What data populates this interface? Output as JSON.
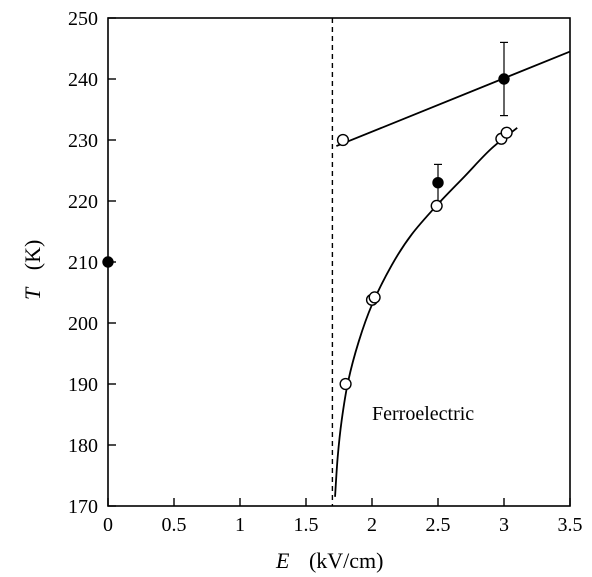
{
  "chart_data": {
    "type": "scatter",
    "title": "",
    "xlabel": {
      "symbol": "E",
      "unit": "(kV/cm)"
    },
    "ylabel": {
      "symbol": "T",
      "unit": "(K)"
    },
    "xlim": [
      0,
      3.5
    ],
    "ylim": [
      170,
      250
    ],
    "x_ticks": [
      "0",
      "0.5",
      "1",
      "1.5",
      "2",
      "2.5",
      "3",
      "3.5"
    ],
    "y_ticks": [
      "170",
      "180",
      "190",
      "200",
      "210",
      "220",
      "230",
      "240",
      "250"
    ],
    "x_tick_values": [
      0,
      0.5,
      1,
      1.5,
      2,
      2.5,
      3,
      3.5
    ],
    "y_tick_values": [
      170,
      180,
      190,
      200,
      210,
      220,
      230,
      240,
      250
    ],
    "grid": false,
    "annotation": "Ferroelectric",
    "vertical_dashed_line_x": 1.7,
    "series": [
      {
        "marker": "filled-circle",
        "points": [
          {
            "x": 0,
            "y": 210
          },
          {
            "x": 2.5,
            "y": 223,
            "yerr": 3
          },
          {
            "x": 3.0,
            "y": 240,
            "yerr": 6
          }
        ]
      },
      {
        "marker": "open-circle",
        "points": [
          {
            "x": 1.78,
            "y": 230
          },
          {
            "x": 1.8,
            "y": 190
          },
          {
            "x": 2.0,
            "y": 203.8
          },
          {
            "x": 2.02,
            "y": 204.2
          },
          {
            "x": 2.49,
            "y": 219.2
          },
          {
            "x": 2.98,
            "y": 230.2
          },
          {
            "x": 3.02,
            "y": 231.2
          }
        ]
      }
    ],
    "fit_lines": [
      {
        "shape": "straight",
        "points": [
          {
            "x": 1.73,
            "y": 229
          },
          {
            "x": 3.5,
            "y": 244.5
          }
        ]
      },
      {
        "shape": "curve",
        "points": [
          {
            "x": 1.72,
            "y": 171.5
          },
          {
            "x": 1.74,
            "y": 178
          },
          {
            "x": 1.77,
            "y": 184
          },
          {
            "x": 1.82,
            "y": 190.5
          },
          {
            "x": 1.9,
            "y": 197
          },
          {
            "x": 2.0,
            "y": 203
          },
          {
            "x": 2.15,
            "y": 209.5
          },
          {
            "x": 2.3,
            "y": 214.5
          },
          {
            "x": 2.5,
            "y": 219.5
          },
          {
            "x": 2.7,
            "y": 224
          },
          {
            "x": 2.9,
            "y": 228.5
          },
          {
            "x": 3.1,
            "y": 232
          }
        ]
      }
    ]
  }
}
